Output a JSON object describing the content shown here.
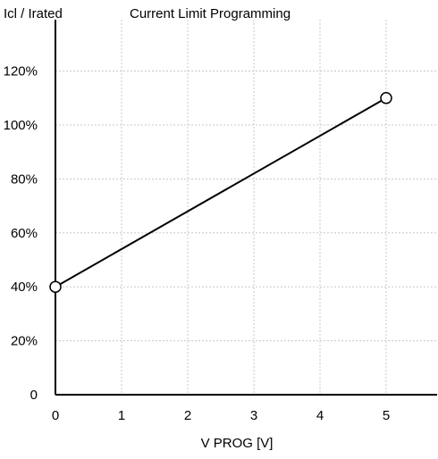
{
  "chart_data": {
    "type": "line",
    "title": "Current Limit Programming",
    "ylabel": "Icl / Irated",
    "xlabel": "V PROG [V]",
    "xlim": [
      0,
      5.8
    ],
    "ylim": [
      0,
      1.3
    ],
    "x_ticks": [
      0,
      1,
      2,
      3,
      4,
      5
    ],
    "x_tick_labels": [
      "0",
      "1",
      "2",
      "3",
      "4",
      "5"
    ],
    "y_ticks": [
      0,
      0.2,
      0.4,
      0.6,
      0.8,
      1.0,
      1.2
    ],
    "y_tick_labels": [
      "0",
      "20%",
      "40%",
      "60%",
      "80%",
      "100%",
      "120%"
    ],
    "grid": true,
    "series": [
      {
        "x": [
          0,
          5
        ],
        "y": [
          0.4,
          1.1
        ],
        "markers": "open-circle"
      }
    ]
  }
}
